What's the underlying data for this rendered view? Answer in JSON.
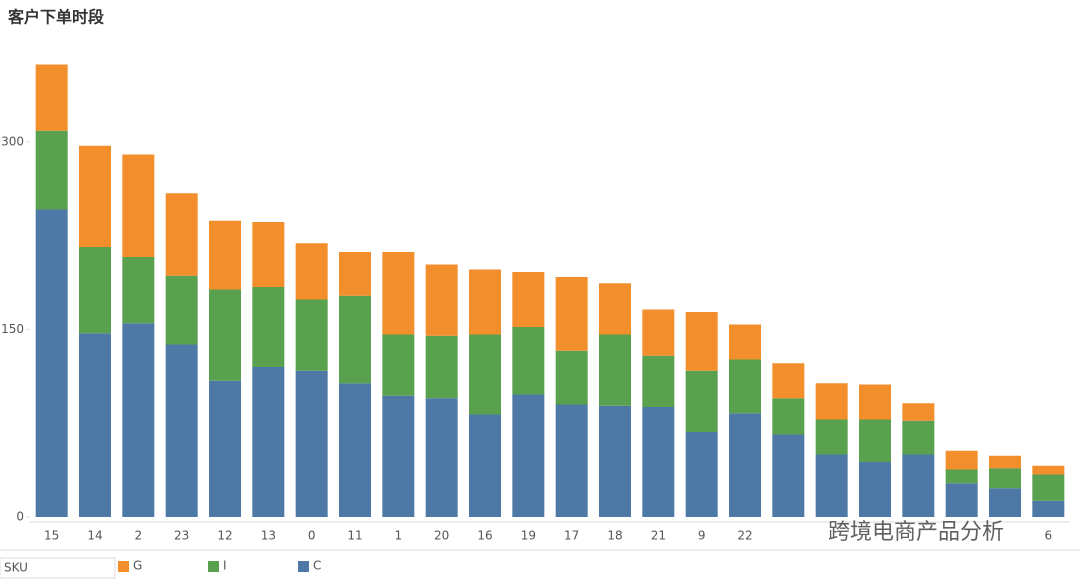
{
  "chart_data": {
    "type": "stacked_bar",
    "title": "客户下单时段",
    "categories": [
      "15",
      "14",
      "2",
      "23",
      "12",
      "13",
      "0",
      "11",
      "1",
      "20",
      "16",
      "19",
      "17",
      "18",
      "21",
      "9",
      "22",
      null,
      null,
      null,
      null,
      null,
      null,
      "6"
    ],
    "series": [
      {
        "name": "G",
        "color": "#f28e2b",
        "values": [
          53,
          81,
          82,
          66,
          55,
          52,
          45,
          35,
          66,
          57,
          52,
          44,
          59,
          41,
          37,
          47,
          28,
          28,
          29,
          28,
          14,
          15,
          10,
          7
        ]
      },
      {
        "name": "I",
        "color": "#59a14f",
        "values": [
          63,
          69,
          53,
          55,
          73,
          64,
          57,
          70,
          49,
          50,
          64,
          54,
          43,
          57,
          41,
          49,
          43,
          29,
          28,
          34,
          27,
          11,
          16,
          21
        ]
      },
      {
        "name": "C",
        "color": "#4e79a7",
        "values": [
          246,
          147,
          155,
          138,
          109,
          120,
          117,
          107,
          97,
          95,
          82,
          98,
          90,
          89,
          88,
          68,
          83,
          66,
          50,
          44,
          50,
          27,
          23,
          13
        ]
      }
    ],
    "legend_title": "SKU",
    "watermark": "跨境电商产品分析",
    "ylim": [
      0,
      380
    ],
    "yticks": [
      0,
      150,
      300
    ]
  }
}
